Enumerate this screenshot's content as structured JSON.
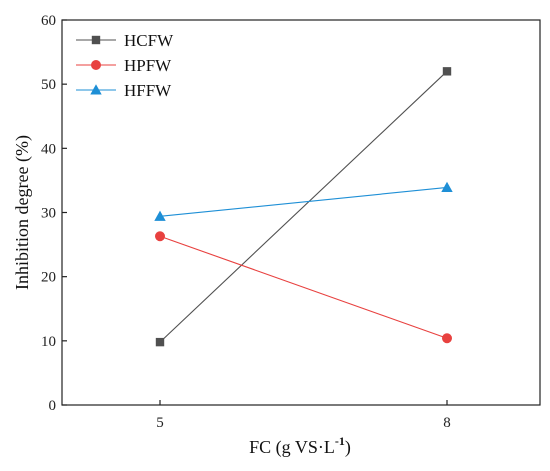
{
  "chart_data": {
    "type": "line",
    "x": [
      5,
      8
    ],
    "xticks": [
      "5",
      "8"
    ],
    "xlabel": "FC (g VS·L",
    "xlabel_sup": "-1",
    "xlabel_close": ")",
    "ylabel": "Inhibition degree (%)",
    "ylim": [
      0,
      60
    ],
    "yticks": [
      0,
      10,
      20,
      30,
      40,
      50,
      60
    ],
    "grid": false,
    "legend_position": "top-left",
    "series": [
      {
        "name": "HCFW",
        "values": [
          9.8,
          52.0
        ],
        "color": "#505050",
        "marker": "square"
      },
      {
        "name": "HPFW",
        "values": [
          26.3,
          10.4
        ],
        "color": "#e8413f",
        "marker": "circle"
      },
      {
        "name": "HFFW",
        "values": [
          29.4,
          33.9
        ],
        "color": "#1e8fd6",
        "marker": "triangle"
      }
    ]
  }
}
